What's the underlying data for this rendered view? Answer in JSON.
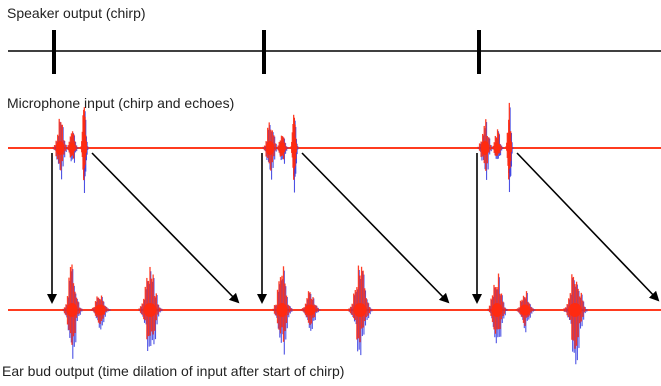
{
  "labels": {
    "speaker": "Speaker output (chirp)",
    "microphone": "Microphone input (chirp and echoes)",
    "ear_bud": "Ear bud output (time dilation of input after start of chirp)"
  },
  "colors": {
    "signal_line": "#ff3b1f",
    "waveform_red": "#ff2a10",
    "waveform_blue": "#2e35e0",
    "speaker_line": "#000000",
    "arrow": "#000000"
  }
}
